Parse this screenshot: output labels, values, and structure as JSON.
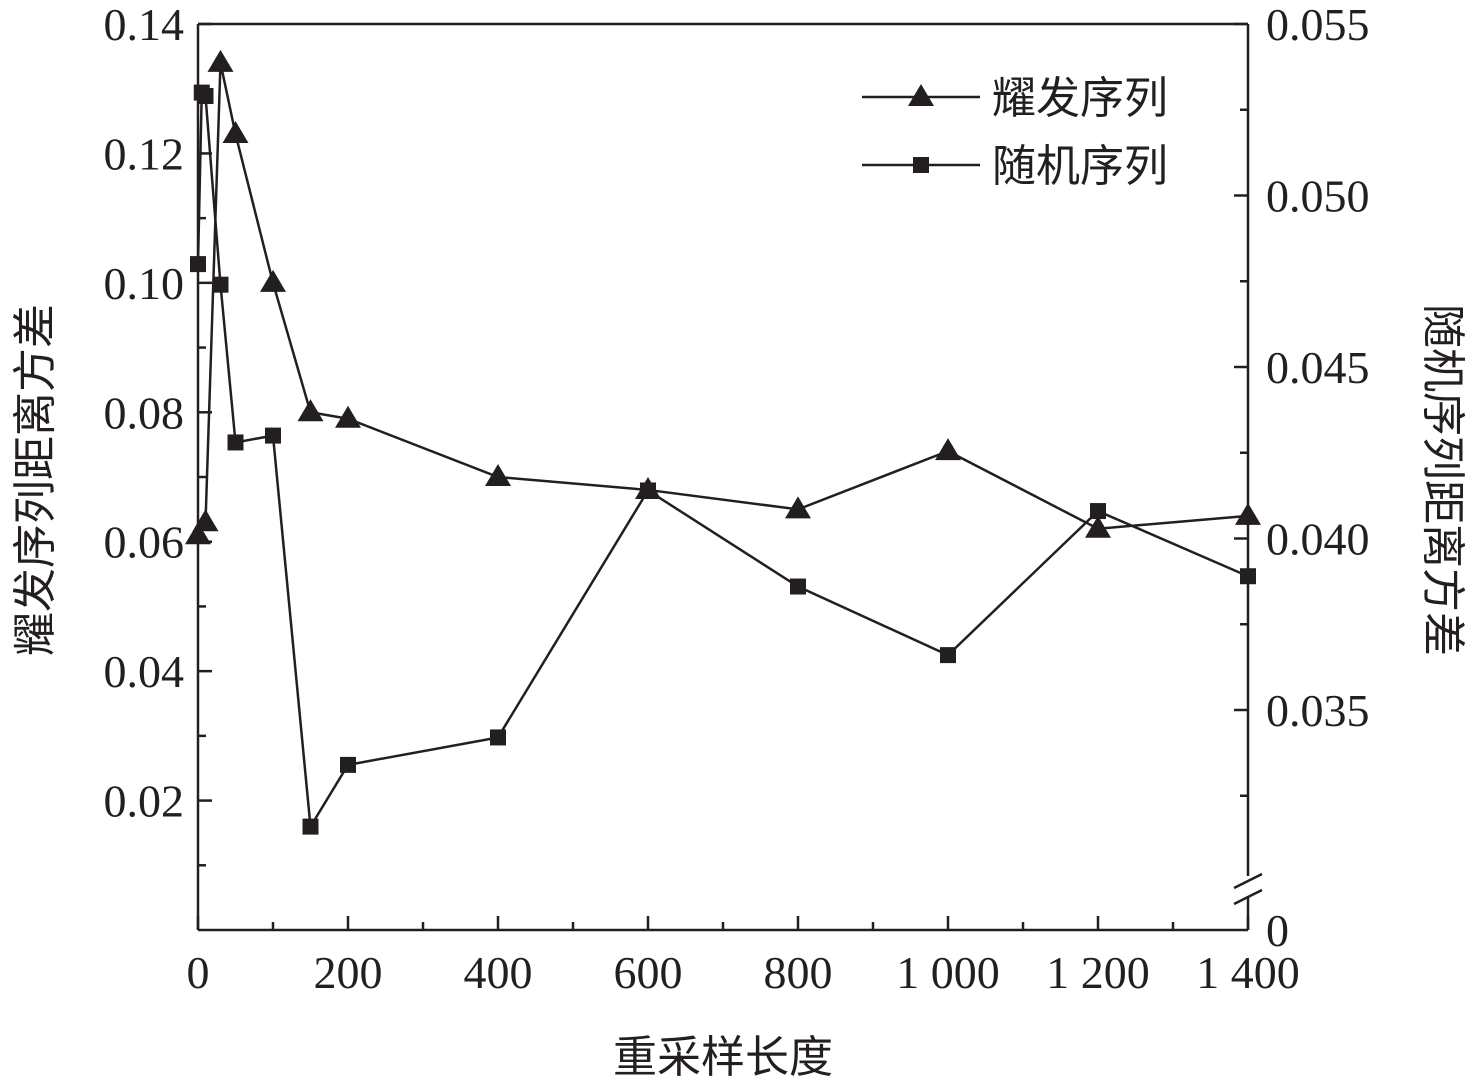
{
  "chart_data": {
    "type": "line",
    "xlabel": "重采样长度",
    "ylabel_left": "耀发序列距离方差",
    "ylabel_right": "随机序列距离方差",
    "xlim": [
      0,
      1400
    ],
    "x_ticks": [
      0,
      200,
      400,
      600,
      800,
      1000,
      1200,
      1400
    ],
    "x_tick_labels": [
      "0",
      "200",
      "400",
      "600",
      "800",
      "1 000",
      "1 200",
      "1 400"
    ],
    "ylim_left": [
      0,
      0.14
    ],
    "y_left_ticks": [
      0.02,
      0.04,
      0.06,
      0.08,
      0.1,
      0.12,
      0.14
    ],
    "y_left_tick_labels": [
      "0.02",
      "0.04",
      "0.06",
      "0.08",
      "0.10",
      "0.12",
      "0.14"
    ],
    "ylim_right": [
      0.03,
      0.055
    ],
    "y_right_ticks": [
      0.035,
      0.04,
      0.045,
      0.05,
      0.055
    ],
    "y_right_tick_labels": [
      "0.035",
      "0.040",
      "0.045",
      "0.050",
      "0.055"
    ],
    "y_right_break_label": "0",
    "legend_position": "top-right",
    "series": [
      {
        "name": "耀发序列",
        "axis": "left",
        "marker": "triangle",
        "x": [
          0,
          10,
          30,
          50,
          100,
          150,
          200,
          400,
          600,
          800,
          1000,
          1200,
          1400
        ],
        "y": [
          0.061,
          0.063,
          0.134,
          0.123,
          0.1,
          0.08,
          0.079,
          0.07,
          0.068,
          0.065,
          0.074,
          0.062,
          0.064
        ]
      },
      {
        "name": "随机序列",
        "axis": "right",
        "marker": "square",
        "x": [
          0,
          5,
          10,
          30,
          50,
          100,
          150,
          200,
          400,
          600,
          800,
          1000,
          1200,
          1400
        ],
        "y": [
          0.048,
          0.053,
          0.0529,
          0.0474,
          0.0428,
          0.043,
          0.0316,
          0.0334,
          0.0342,
          0.0414,
          0.0386,
          0.0366,
          0.0408,
          0.0389
        ]
      }
    ]
  }
}
